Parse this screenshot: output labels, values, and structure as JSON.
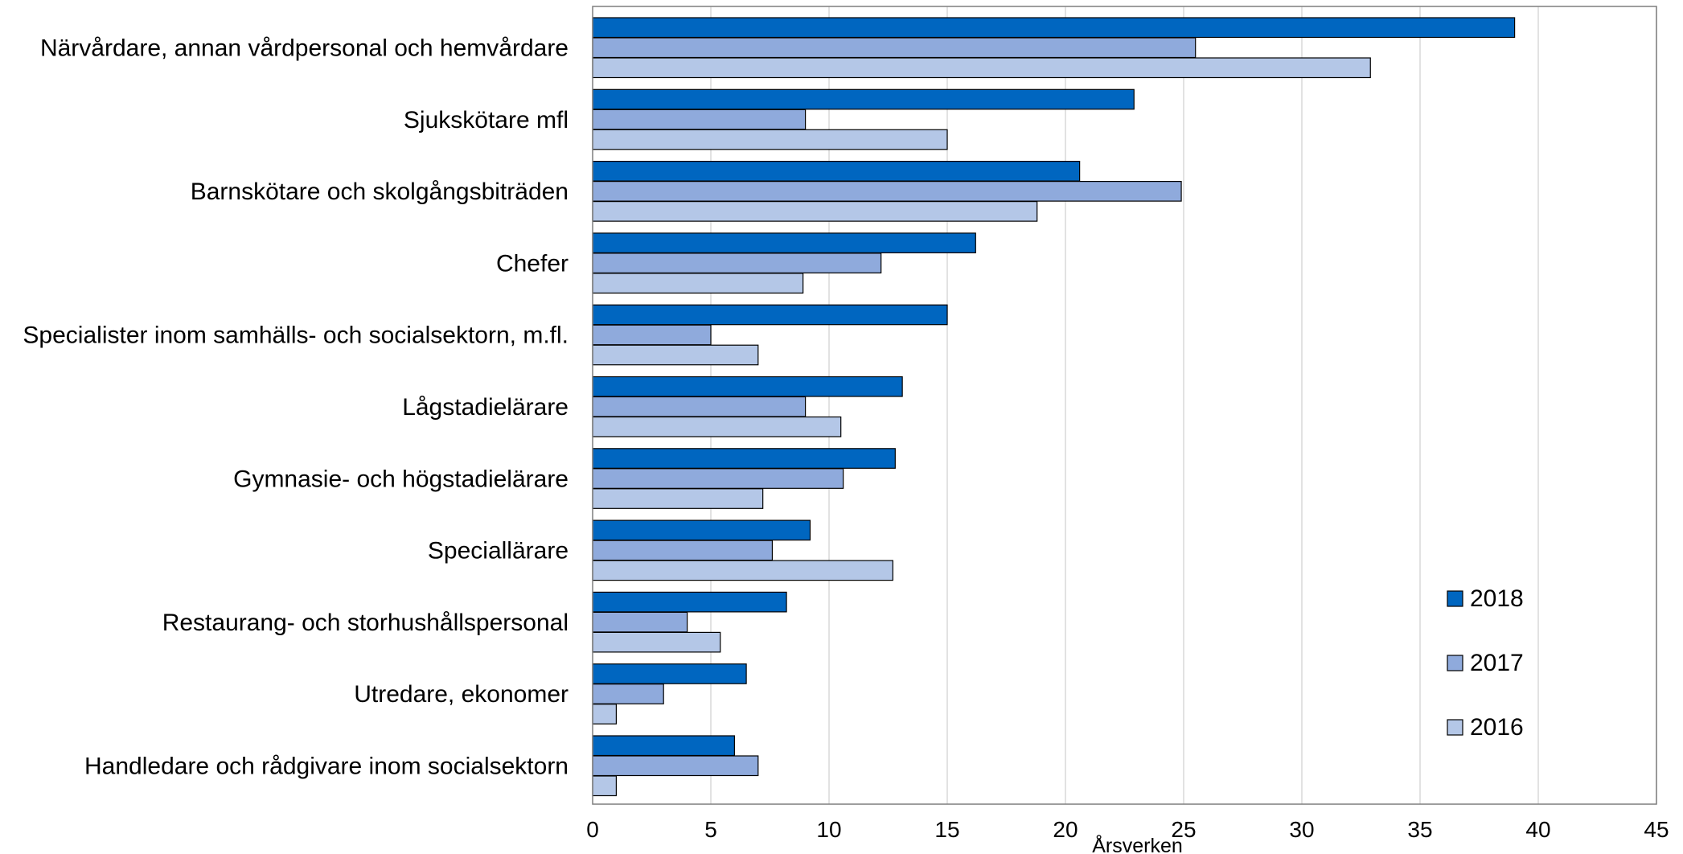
{
  "chart_data": {
    "type": "bar",
    "orientation": "horizontal",
    "categories": [
      "Närvårdare, annan vårdpersonal och hemvårdare",
      "Sjukskötare mfl",
      "Barnskötare och skolgångsbiträden",
      "Chefer",
      "Specialister inom samhälls- och socialsektorn, m.fl.",
      "Lågstadielärare",
      "Gymnasie- och högstadielärare",
      "Speciallärare",
      "Restaurang- och storhushållspersonal",
      "Utredare, ekonomer",
      "Handledare och rådgivare inom socialsektorn"
    ],
    "series": [
      {
        "name": "2018",
        "color": "#0066C0",
        "values": [
          39.0,
          22.9,
          20.6,
          16.2,
          15.0,
          13.1,
          12.8,
          9.2,
          8.2,
          6.5,
          6.0
        ]
      },
      {
        "name": "2017",
        "color": "#8FAADC",
        "values": [
          25.5,
          9.0,
          24.9,
          12.2,
          5.0,
          9.0,
          10.6,
          7.6,
          4.0,
          3.0,
          7.0
        ]
      },
      {
        "name": "2016",
        "color": "#B4C7E7",
        "values": [
          32.9,
          15.0,
          18.8,
          8.9,
          7.0,
          10.5,
          7.2,
          12.7,
          5.4,
          1.0,
          1.0
        ]
      }
    ],
    "xlabel": "Årsverken",
    "ylabel": "",
    "xlim": [
      0,
      45
    ],
    "xticks": [
      0,
      5,
      10,
      15,
      20,
      25,
      30,
      35,
      40,
      45
    ],
    "xtick_labels": [
      "0",
      "5",
      "10",
      "15",
      "20",
      "25",
      "30",
      "35",
      "40",
      "45"
    ],
    "grid": "vertical",
    "legend": {
      "position": "right",
      "entries": [
        "2018",
        "2017",
        "2016"
      ]
    },
    "colors": {
      "axis": "#7F7F7F",
      "grid": "#D9D9D9",
      "bar_edge": "#000000"
    }
  }
}
